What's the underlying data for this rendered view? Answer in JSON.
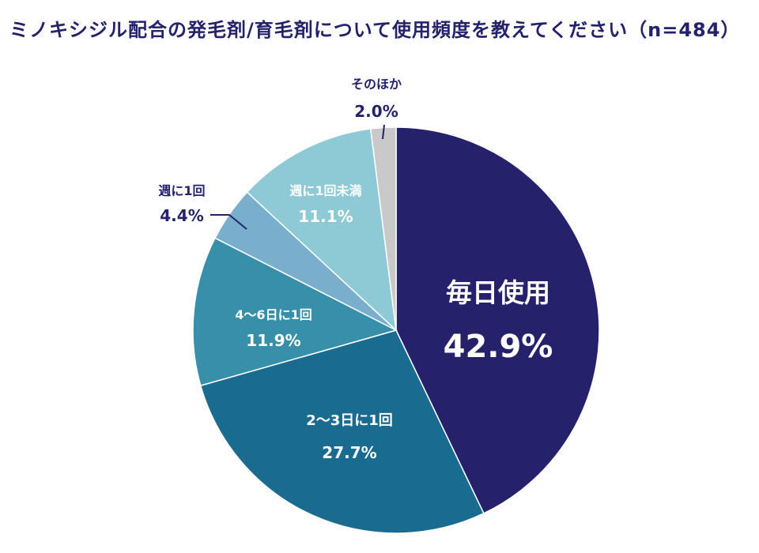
{
  "chart_data": {
    "type": "pie",
    "title": "ミノキシジル配合の発毛剤/育毛剤について使用頻度を教えてください（n=484）",
    "slices": [
      {
        "label": "毎日使用",
        "value_label": "42.9%",
        "value": 42.9,
        "color": "#25226b",
        "text_color": "#ffffff"
      },
      {
        "label": "2〜3日に1回",
        "value_label": "27.7%",
        "value": 27.7,
        "color": "#1a6b90",
        "text_color": "#ffffff"
      },
      {
        "label": "4〜6日に1回",
        "value_label": "11.9%",
        "value": 11.9,
        "color": "#388fa9",
        "text_color": "#ffffff"
      },
      {
        "label": "週に1回",
        "value_label": "4.4%",
        "value": 4.4,
        "color": "#79aecd",
        "text_color": "#23226b"
      },
      {
        "label": "週に1回未満",
        "value_label": "11.1%",
        "value": 11.1,
        "color": "#8ec9d6",
        "text_color": "#ffffff"
      },
      {
        "label": "そのほか",
        "value_label": "2.0%",
        "value": 2.0,
        "color": "#c9c9c9",
        "text_color": "#23226b"
      }
    ]
  }
}
